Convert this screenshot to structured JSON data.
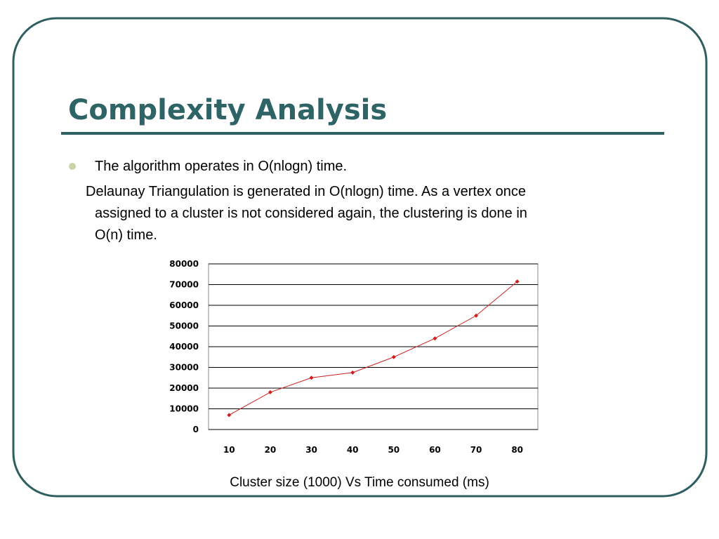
{
  "header": {
    "title": "Complexity Analysis"
  },
  "bullets": [
    {
      "text": "The algorithm operates in O(nlogn) time."
    }
  ],
  "paragraph": {
    "lines": [
      "Delaunay Triangulation is generated in O(nlogn) time. As a vertex once",
      "assigned to a cluster is not considered again, the clustering is done in",
      "O(n) time."
    ]
  },
  "chart_data": {
    "type": "line",
    "categories": [
      "10",
      "20",
      "30",
      "40",
      "50",
      "60",
      "70",
      "80"
    ],
    "values": [
      7000,
      18000,
      25000,
      27500,
      35000,
      44000,
      55000,
      71500
    ],
    "color": "#cc2020",
    "ylim": [
      0,
      80000
    ],
    "yticks": [
      0,
      10000,
      20000,
      30000,
      40000,
      50000,
      60000,
      70000,
      80000
    ],
    "grid": true,
    "caption": "Cluster size (1000) Vs Time consumed (ms)"
  }
}
